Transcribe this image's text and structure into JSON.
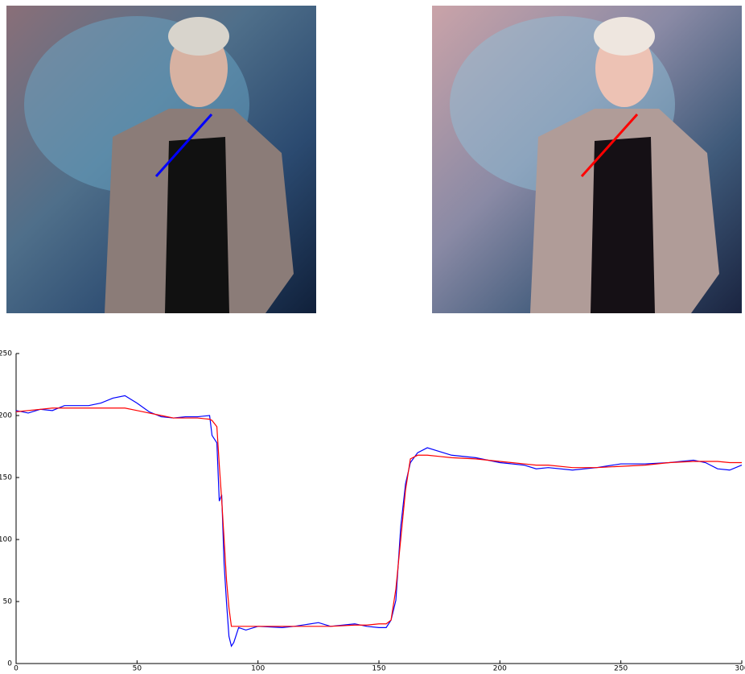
{
  "chart_data": {
    "type": "line",
    "x": [
      0,
      5,
      10,
      15,
      20,
      30,
      35,
      40,
      45,
      50,
      55,
      60,
      65,
      70,
      75,
      80,
      81,
      83,
      84,
      85,
      86,
      87,
      88,
      89,
      90,
      92,
      95,
      100,
      110,
      115,
      125,
      130,
      140,
      145,
      150,
      153,
      155,
      157,
      159,
      161,
      163,
      166,
      170,
      175,
      180,
      190,
      200,
      210,
      215,
      220,
      230,
      240,
      250,
      260,
      270,
      280,
      285,
      290,
      295,
      300
    ],
    "series": [
      {
        "color": "#0000ff",
        "values": [
          204,
          202,
          205,
          204,
          208,
          208,
          210,
          214,
          216,
          210,
          203,
          199,
          198,
          199,
          199,
          200,
          184,
          178,
          131,
          136,
          80,
          49,
          22,
          14,
          17,
          29,
          27,
          30,
          29,
          30,
          33,
          30,
          32,
          30,
          29,
          29,
          35,
          51,
          110,
          145,
          162,
          170,
          174,
          171,
          168,
          166,
          162,
          160,
          157,
          158,
          156,
          158,
          161,
          161,
          162,
          164,
          162,
          157,
          156,
          160
        ]
      },
      {
        "color": "#ff0000",
        "values": [
          203,
          204,
          205,
          206,
          206,
          206,
          206,
          206,
          206,
          204,
          202,
          200,
          198,
          198,
          198,
          197,
          196,
          191,
          160,
          132,
          100,
          67,
          45,
          30,
          30,
          30,
          30,
          30,
          30,
          30,
          30,
          30,
          31,
          31,
          32,
          32,
          35,
          60,
          100,
          140,
          165,
          168,
          168,
          167,
          166,
          165,
          163,
          161,
          160,
          160,
          158,
          158,
          159,
          160,
          162,
          163,
          163,
          163,
          162,
          162
        ]
      }
    ],
    "xlim": [
      0,
      300
    ],
    "ylim": [
      0,
      250
    ],
    "xticks": [
      0,
      50,
      100,
      150,
      200,
      250,
      300
    ],
    "yticks": [
      0,
      50,
      100,
      150,
      200,
      250
    ]
  }
}
